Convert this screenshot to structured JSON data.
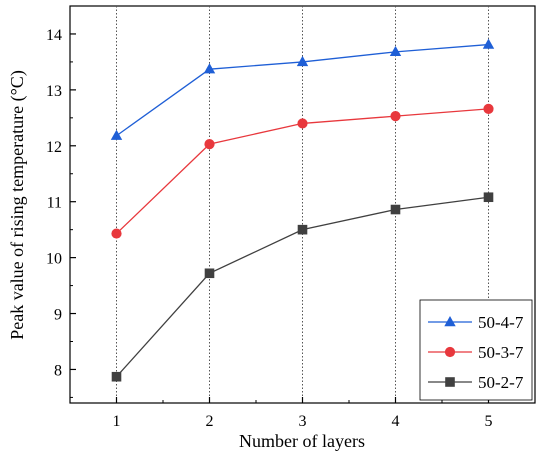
{
  "chart_data": {
    "type": "line",
    "title": "",
    "xlabel": "Number of layers",
    "ylabel": "Peak value of rising temperature (°C)",
    "x": [
      1,
      2,
      3,
      4,
      5
    ],
    "xlim": [
      0.5,
      5.5
    ],
    "ylim": [
      7.4,
      14.5
    ],
    "xticks": [
      "1",
      "2",
      "3",
      "4",
      "5"
    ],
    "yticks": [
      "8",
      "9",
      "10",
      "11",
      "12",
      "13",
      "14"
    ],
    "grid": "vertical dotted lines at x ticks",
    "legend_position": "bottom-right",
    "series": [
      {
        "name": "50-4-7",
        "color": "#1f5fd6",
        "marker": "triangle",
        "values": [
          12.18,
          13.37,
          13.5,
          13.68,
          13.81
        ]
      },
      {
        "name": "50-3-7",
        "color": "#e8383d",
        "marker": "circle",
        "values": [
          10.43,
          12.03,
          12.4,
          12.53,
          12.66
        ]
      },
      {
        "name": "50-2-7",
        "color": "#404040",
        "marker": "square",
        "values": [
          7.87,
          9.72,
          10.5,
          10.86,
          11.08
        ]
      }
    ]
  }
}
